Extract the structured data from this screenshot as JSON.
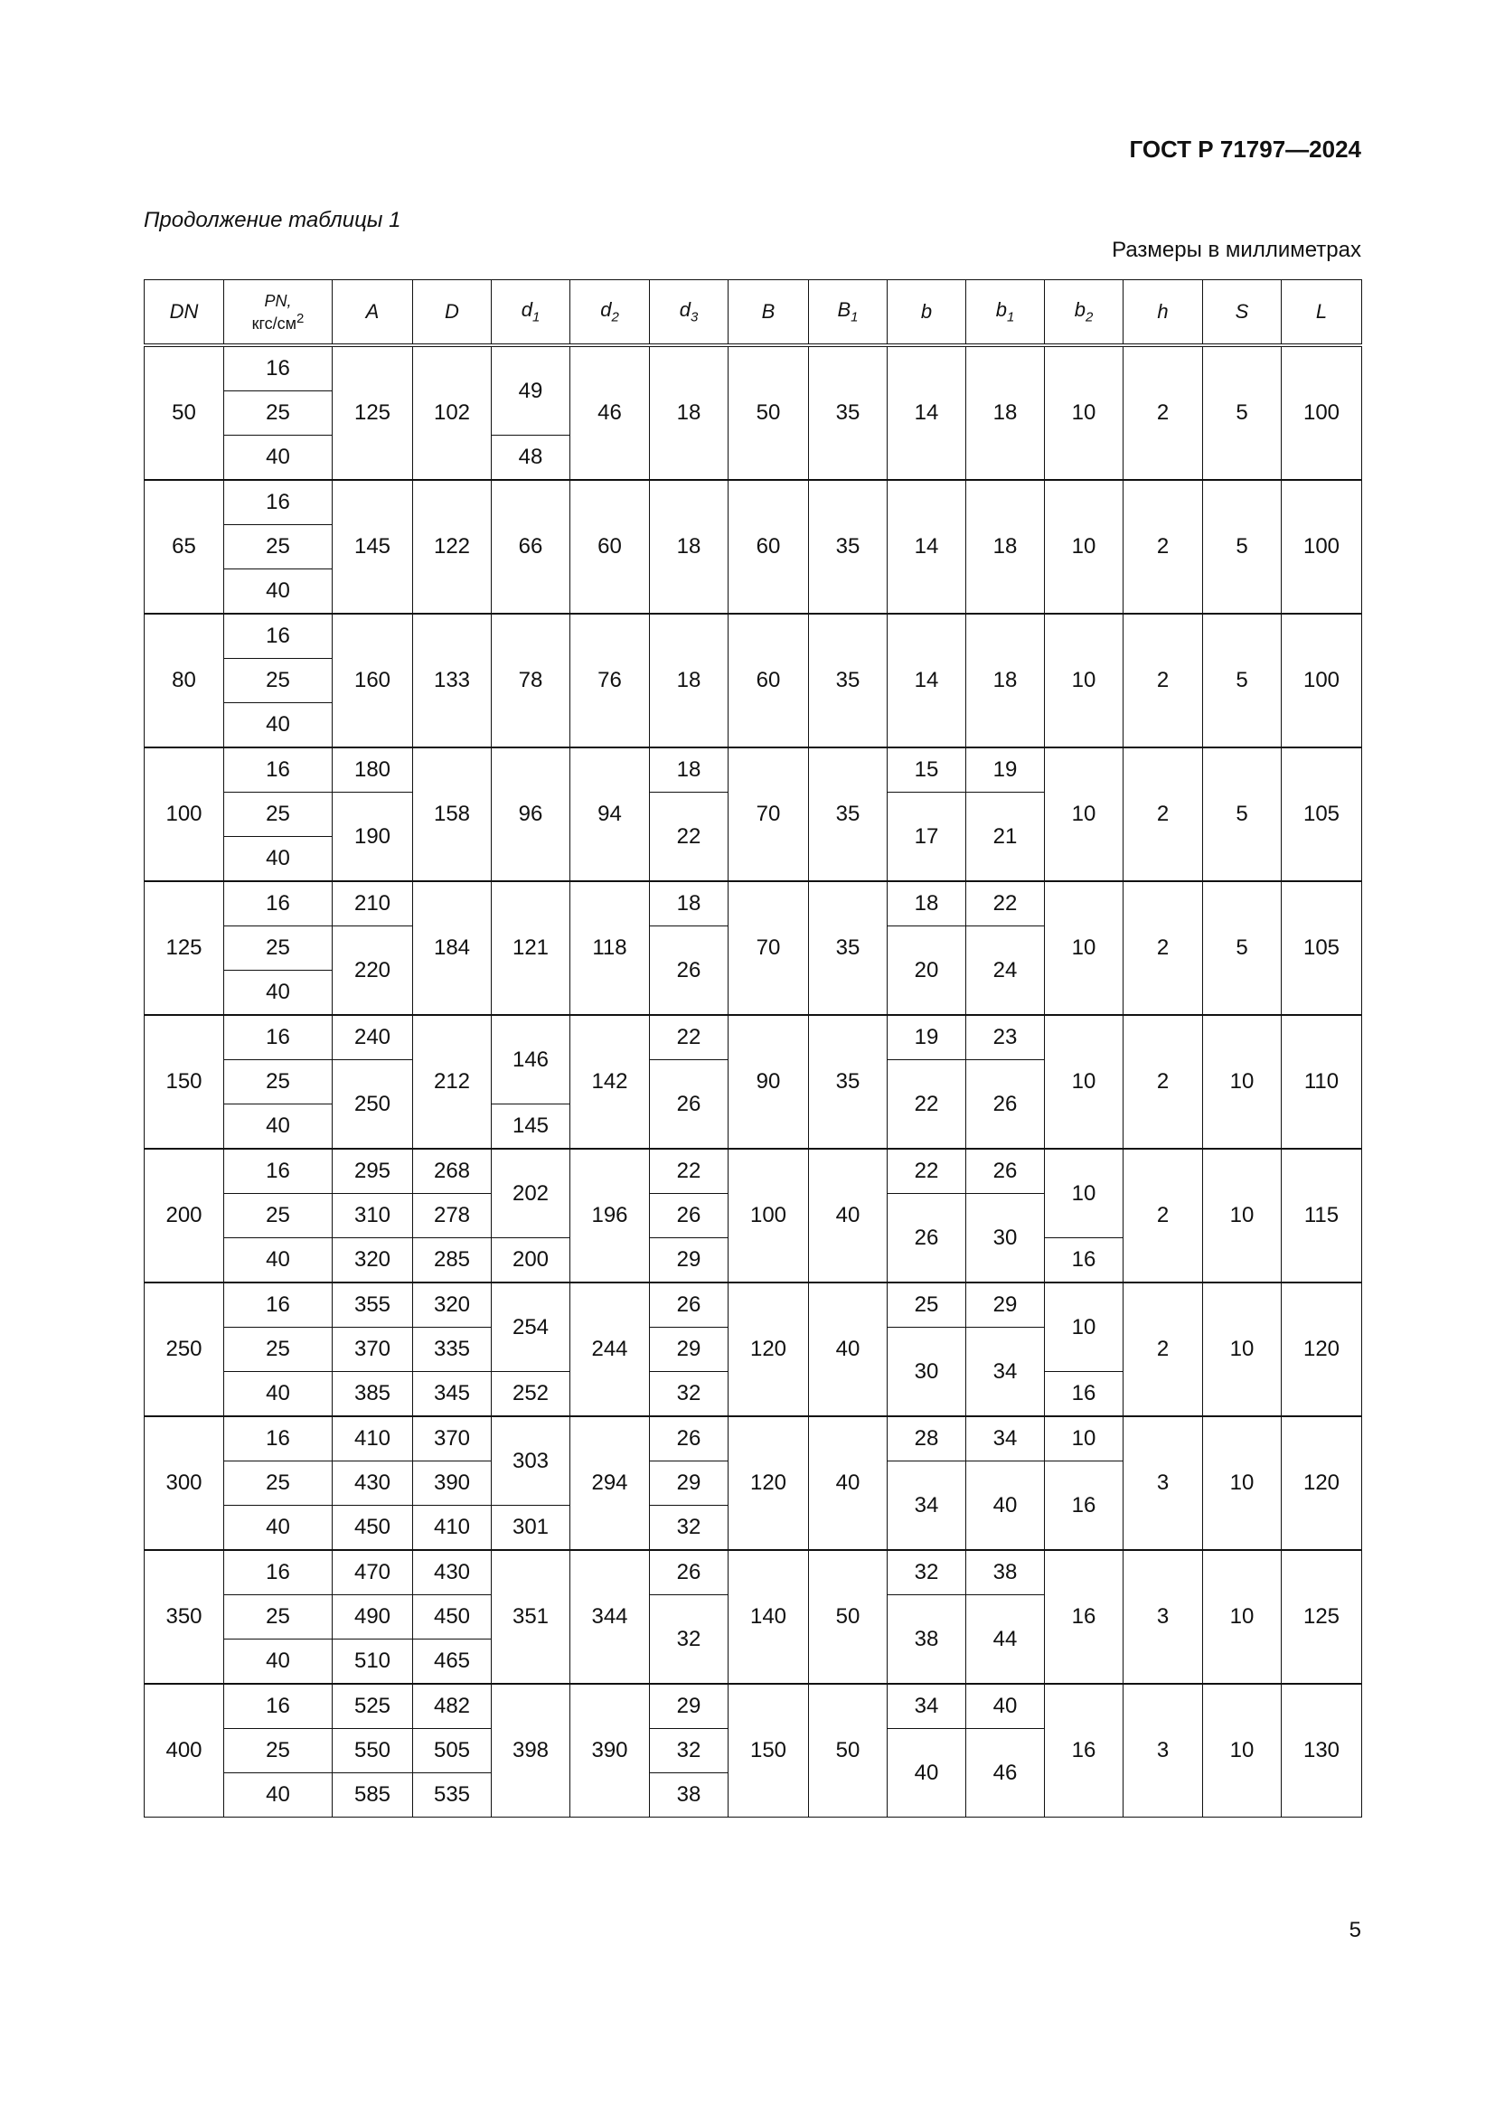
{
  "header": {
    "doc_id": "ГОСТ Р 71797—2024"
  },
  "caption": "Продолжение таблицы 1",
  "units_note": "Размеры в миллиметрах",
  "page_number": "5",
  "table": {
    "columns": [
      {
        "key": "DN",
        "base": "DN"
      },
      {
        "key": "PN",
        "base": "PN,",
        "unit": "кгс/см",
        "unit_sup": "2"
      },
      {
        "key": "A",
        "base": "A"
      },
      {
        "key": "D",
        "base": "D"
      },
      {
        "key": "d1",
        "base": "d",
        "sub": "1"
      },
      {
        "key": "d2",
        "base": "d",
        "sub": "2"
      },
      {
        "key": "d3",
        "base": "d",
        "sub": "3"
      },
      {
        "key": "B",
        "base": "B"
      },
      {
        "key": "B1",
        "base": "B",
        "sub": "1"
      },
      {
        "key": "b",
        "base": "b"
      },
      {
        "key": "b1",
        "base": "b",
        "sub": "1"
      },
      {
        "key": "b2",
        "base": "b",
        "sub": "2"
      },
      {
        "key": "h",
        "base": "h"
      },
      {
        "key": "S",
        "base": "S"
      },
      {
        "key": "L",
        "base": "L"
      }
    ],
    "groups": [
      {
        "DN": "50",
        "PN": [
          "16",
          "25",
          "40"
        ],
        "A": "125",
        "D": "102",
        "d1": [
          "49",
          null,
          "48"
        ],
        "d2": "46",
        "d3": "18",
        "B": "50",
        "B1": "35",
        "b": "14",
        "b1": "18",
        "b2": "10",
        "h": "2",
        "S": "5",
        "L": "100"
      },
      {
        "DN": "65",
        "PN": [
          "16",
          "25",
          "40"
        ],
        "A": "145",
        "D": "122",
        "d1": "66",
        "d2": "60",
        "d3": "18",
        "B": "60",
        "B1": "35",
        "b": "14",
        "b1": "18",
        "b2": "10",
        "h": "2",
        "S": "5",
        "L": "100"
      },
      {
        "DN": "80",
        "PN": [
          "16",
          "25",
          "40"
        ],
        "A": "160",
        "D": "133",
        "d1": "78",
        "d2": "76",
        "d3": "18",
        "B": "60",
        "B1": "35",
        "b": "14",
        "b1": "18",
        "b2": "10",
        "h": "2",
        "S": "5",
        "L": "100"
      },
      {
        "DN": "100",
        "PN": [
          "16",
          "25",
          "40"
        ],
        "A": [
          "180",
          "190",
          null
        ],
        "D": "158",
        "d1": "96",
        "d2": "94",
        "d3": [
          "18",
          "22",
          null
        ],
        "B": "70",
        "B1": "35",
        "b": [
          "15",
          "17",
          null
        ],
        "b1": [
          "19",
          "21",
          null
        ],
        "b2": "10",
        "h": "2",
        "S": "5",
        "L": "105"
      },
      {
        "DN": "125",
        "PN": [
          "16",
          "25",
          "40"
        ],
        "A": [
          "210",
          "220",
          null
        ],
        "D": "184",
        "d1": "121",
        "d2": "118",
        "d3": [
          "18",
          "26",
          null
        ],
        "B": "70",
        "B1": "35",
        "b": [
          "18",
          "20",
          null
        ],
        "b1": [
          "22",
          "24",
          null
        ],
        "b2": "10",
        "h": "2",
        "S": "5",
        "L": "105"
      },
      {
        "DN": "150",
        "PN": [
          "16",
          "25",
          "40"
        ],
        "A": [
          "240",
          "250",
          null
        ],
        "D": "212",
        "d1": [
          "146",
          null,
          "145"
        ],
        "d2": "142",
        "d3": [
          "22",
          "26",
          null
        ],
        "B": "90",
        "B1": "35",
        "b": [
          "19",
          "22",
          null
        ],
        "b1": [
          "23",
          "26",
          null
        ],
        "b2": "10",
        "h": "2",
        "S": "10",
        "L": "110"
      },
      {
        "DN": "200",
        "PN": [
          "16",
          "25",
          "40"
        ],
        "A": [
          "295",
          "310",
          "320"
        ],
        "D": [
          "268",
          "278",
          "285"
        ],
        "d1": [
          "202",
          null,
          "200"
        ],
        "d2": "196",
        "d3": [
          "22",
          "26",
          "29"
        ],
        "B": "100",
        "B1": "40",
        "b": [
          "22",
          "26",
          null
        ],
        "b1": [
          "26",
          "30",
          null
        ],
        "b2": [
          "10",
          null,
          "16"
        ],
        "h": "2",
        "S": "10",
        "L": "115"
      },
      {
        "DN": "250",
        "PN": [
          "16",
          "25",
          "40"
        ],
        "A": [
          "355",
          "370",
          "385"
        ],
        "D": [
          "320",
          "335",
          "345"
        ],
        "d1": [
          "254",
          null,
          "252"
        ],
        "d2": "244",
        "d3": [
          "26",
          "29",
          "32"
        ],
        "B": "120",
        "B1": "40",
        "b": [
          "25",
          "30",
          null
        ],
        "b1": [
          "29",
          "34",
          null
        ],
        "b2": [
          "10",
          null,
          "16"
        ],
        "h": "2",
        "S": "10",
        "L": "120"
      },
      {
        "DN": "300",
        "PN": [
          "16",
          "25",
          "40"
        ],
        "A": [
          "410",
          "430",
          "450"
        ],
        "D": [
          "370",
          "390",
          "410"
        ],
        "d1": [
          "303",
          null,
          "301"
        ],
        "d2": "294",
        "d3": [
          "26",
          "29",
          "32"
        ],
        "B": "120",
        "B1": "40",
        "b": [
          "28",
          "34",
          null
        ],
        "b1": [
          "34",
          "40",
          null
        ],
        "b2": [
          "10",
          "16",
          null
        ],
        "h": "3",
        "S": "10",
        "L": "120"
      },
      {
        "DN": "350",
        "PN": [
          "16",
          "25",
          "40"
        ],
        "A": [
          "470",
          "490",
          "510"
        ],
        "D": [
          "430",
          "450",
          "465"
        ],
        "d1": "351",
        "d2": "344",
        "d3": [
          "26",
          "32",
          null
        ],
        "B": "140",
        "B1": "50",
        "b": [
          "32",
          "38",
          null
        ],
        "b1": [
          "38",
          "44",
          null
        ],
        "b2": "16",
        "h": "3",
        "S": "10",
        "L": "125"
      },
      {
        "DN": "400",
        "PN": [
          "16",
          "25",
          "40"
        ],
        "A": [
          "525",
          "550",
          "585"
        ],
        "D": [
          "482",
          "505",
          "535"
        ],
        "d1": "398",
        "d2": "390",
        "d3": [
          "29",
          "32",
          "38"
        ],
        "B": "150",
        "B1": "50",
        "b": [
          "34",
          "40",
          null
        ],
        "b1": [
          "40",
          "46",
          null
        ],
        "b2": "16",
        "h": "3",
        "S": "10",
        "L": "130"
      }
    ]
  }
}
